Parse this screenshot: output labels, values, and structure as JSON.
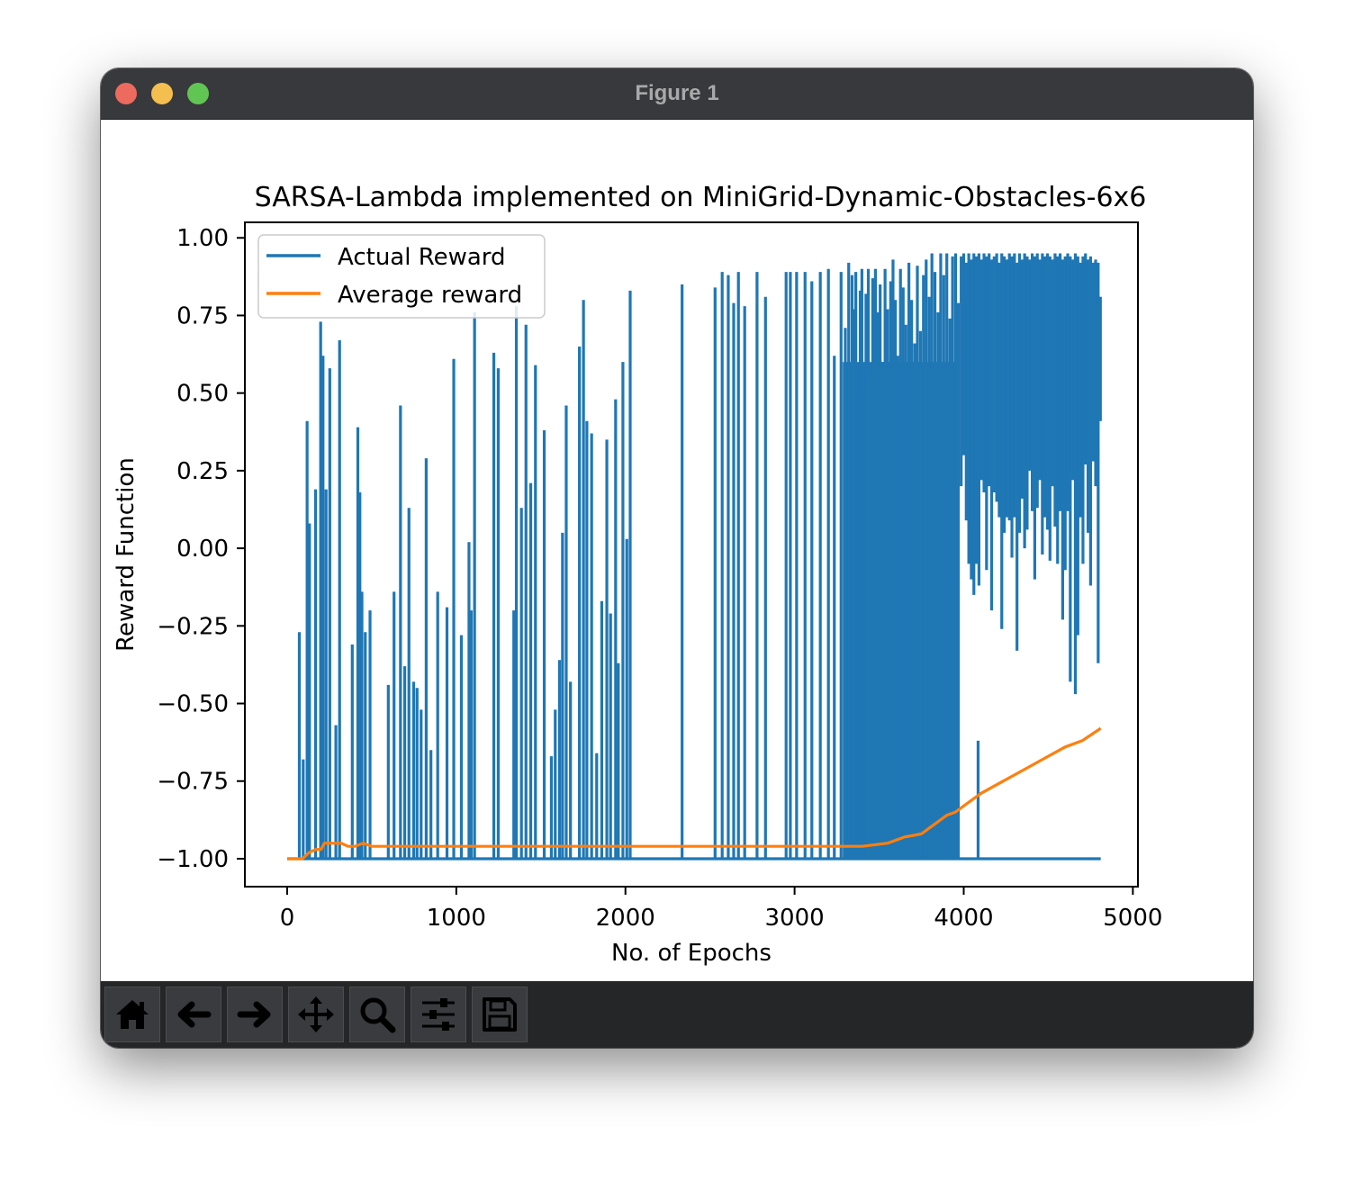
{
  "window": {
    "title": "Figure 1"
  },
  "toolbar": {
    "buttons": [
      {
        "name": "home",
        "icon": "home-icon"
      },
      {
        "name": "back",
        "icon": "arrow-left-icon"
      },
      {
        "name": "forward",
        "icon": "arrow-right-icon"
      },
      {
        "name": "pan",
        "icon": "move-icon"
      },
      {
        "name": "zoom",
        "icon": "magnifier-icon"
      },
      {
        "name": "configure-subplots",
        "icon": "sliders-icon"
      },
      {
        "name": "save",
        "icon": "floppy-disk-icon"
      }
    ]
  },
  "chart_data": {
    "type": "line",
    "title": "SARSA-Lambda implemented on MiniGrid-Dynamic-Obstacles-6x6",
    "xlabel": "No. of Epochs",
    "ylabel": "Reward Function",
    "xlim": [
      -250,
      5030
    ],
    "ylim": [
      -1.09,
      1.05
    ],
    "xticks": [
      0,
      1000,
      2000,
      3000,
      4000,
      5000
    ],
    "xtick_labels": [
      "0",
      "1000",
      "2000",
      "3000",
      "4000",
      "5000"
    ],
    "yticks": [
      1.0,
      0.75,
      0.5,
      0.25,
      0.0,
      -0.25,
      -0.5,
      -0.75,
      -1.0
    ],
    "ytick_labels": [
      "1.00",
      "0.75",
      "0.50",
      "0.25",
      "0.00",
      "−0.25",
      "−0.50",
      "−0.75",
      "−1.00"
    ],
    "legend_position": "top-left",
    "grid": false,
    "series": [
      {
        "name": "Actual Reward",
        "color": "#1f77b4",
        "baseline": -1.0,
        "spikes": [
          [
            72,
            -0.27
          ],
          [
            95,
            -0.68
          ],
          [
            118,
            0.41
          ],
          [
            132,
            0.08
          ],
          [
            168,
            0.19
          ],
          [
            198,
            0.73
          ],
          [
            212,
            0.62
          ],
          [
            230,
            0.19
          ],
          [
            252,
            0.58
          ],
          [
            288,
            -0.57
          ],
          [
            310,
            0.67
          ],
          [
            385,
            -0.31
          ],
          [
            418,
            0.39
          ],
          [
            430,
            0.18
          ],
          [
            442,
            -0.14
          ],
          [
            462,
            -0.27
          ],
          [
            490,
            -0.2
          ],
          [
            598,
            -0.44
          ],
          [
            632,
            -0.14
          ],
          [
            670,
            0.46
          ],
          [
            695,
            -0.38
          ],
          [
            720,
            0.13
          ],
          [
            748,
            -0.43
          ],
          [
            768,
            -0.45
          ],
          [
            792,
            -0.52
          ],
          [
            822,
            0.29
          ],
          [
            850,
            -0.65
          ],
          [
            890,
            -0.14
          ],
          [
            945,
            -0.19
          ],
          [
            985,
            0.61
          ],
          [
            1030,
            -0.28
          ],
          [
            1075,
            0.02
          ],
          [
            1088,
            -0.2
          ],
          [
            1108,
            0.76
          ],
          [
            1222,
            0.63
          ],
          [
            1248,
            0.58
          ],
          [
            1340,
            -0.2
          ],
          [
            1355,
            0.78
          ],
          [
            1385,
            0.13
          ],
          [
            1412,
            0.72
          ],
          [
            1440,
            0.21
          ],
          [
            1468,
            0.59
          ],
          [
            1520,
            0.38
          ],
          [
            1562,
            -0.67
          ],
          [
            1585,
            -0.52
          ],
          [
            1610,
            -0.36
          ],
          [
            1628,
            0.05
          ],
          [
            1650,
            0.46
          ],
          [
            1675,
            -0.43
          ],
          [
            1728,
            0.65
          ],
          [
            1752,
            0.8
          ],
          [
            1772,
            0.41
          ],
          [
            1800,
            0.37
          ],
          [
            1830,
            -0.66
          ],
          [
            1860,
            -0.17
          ],
          [
            1890,
            0.35
          ],
          [
            1912,
            -0.21
          ],
          [
            1942,
            0.48
          ],
          [
            1958,
            -0.37
          ],
          [
            1985,
            0.6
          ],
          [
            2008,
            0.03
          ],
          [
            2028,
            0.83
          ],
          [
            2335,
            0.85
          ],
          [
            2530,
            0.84
          ],
          [
            2572,
            0.89
          ],
          [
            2608,
            0.88
          ],
          [
            2640,
            0.79
          ],
          [
            2668,
            0.89
          ],
          [
            2705,
            0.78
          ],
          [
            2778,
            0.89
          ],
          [
            2828,
            0.81
          ],
          [
            2950,
            0.89
          ],
          [
            2975,
            0.89
          ],
          [
            3012,
            0.89
          ],
          [
            3062,
            0.89
          ],
          [
            3102,
            0.86
          ],
          [
            3152,
            0.89
          ],
          [
            3200,
            0.9
          ],
          [
            3235,
            0.62
          ],
          [
            3275,
            0.89
          ],
          [
            3300,
            0.71
          ],
          [
            3320,
            0.92
          ],
          [
            3340,
            0.88
          ],
          [
            3352,
            0.77
          ],
          [
            3362,
            0.89
          ],
          [
            3374,
            0.49
          ],
          [
            3388,
            0.83
          ],
          [
            3398,
            0.9
          ],
          [
            3410,
            0.59
          ],
          [
            3422,
            0.82
          ],
          [
            3436,
            0.9
          ],
          [
            3448,
            0.55
          ],
          [
            3462,
            0.87
          ],
          [
            3478,
            0.9
          ],
          [
            3492,
            0.76
          ],
          [
            3506,
            0.85
          ],
          [
            3520,
            0.6
          ],
          [
            3535,
            0.9
          ],
          [
            3550,
            0.77
          ],
          [
            3568,
            0.86
          ],
          [
            3582,
            0.93
          ],
          [
            3596,
            0.8
          ],
          [
            3610,
            0.62
          ],
          [
            3626,
            0.9
          ],
          [
            3642,
            0.84
          ],
          [
            3658,
            0.72
          ],
          [
            3676,
            0.92
          ],
          [
            3692,
            0.8
          ],
          [
            3710,
            0.66
          ],
          [
            3726,
            0.91
          ],
          [
            3744,
            0.7
          ],
          [
            3762,
            0.88
          ],
          [
            3778,
            0.93
          ],
          [
            3796,
            0.81
          ],
          [
            3812,
            0.95
          ],
          [
            3830,
            0.89
          ],
          [
            3848,
            0.76
          ],
          [
            3864,
            0.95
          ],
          [
            3882,
            0.88
          ],
          [
            3900,
            0.95
          ],
          [
            3918,
            0.74
          ],
          [
            3934,
            0.94
          ],
          [
            3952,
            0.95
          ],
          [
            3968,
            0.79
          ]
        ],
        "band": [
          [
            3985,
            0.94,
            0.2
          ],
          [
            4000,
            0.95,
            0.3
          ],
          [
            4015,
            0.92,
            0.09
          ],
          [
            4030,
            0.95,
            -0.05
          ],
          [
            4045,
            0.93,
            -0.1
          ],
          [
            4060,
            0.95,
            -0.15
          ],
          [
            4075,
            0.94,
            -0.05
          ],
          [
            4090,
            0.95,
            -0.12
          ],
          [
            4105,
            0.93,
            0.22
          ],
          [
            4120,
            0.95,
            0.18
          ],
          [
            4135,
            0.94,
            -0.07
          ],
          [
            4150,
            0.95,
            0.2
          ],
          [
            4165,
            0.93,
            -0.2
          ],
          [
            4180,
            0.94,
            0.18
          ],
          [
            4195,
            0.95,
            0.15
          ],
          [
            4210,
            0.92,
            0.1
          ],
          [
            4225,
            0.95,
            -0.26
          ],
          [
            4240,
            0.94,
            0.05
          ],
          [
            4255,
            0.93,
            0.1
          ],
          [
            4270,
            0.95,
            0.09
          ],
          [
            4285,
            0.94,
            -0.03
          ],
          [
            4300,
            0.95,
            0.1
          ],
          [
            4315,
            0.92,
            -0.33
          ],
          [
            4330,
            0.95,
            0.05
          ],
          [
            4345,
            0.93,
            0.16
          ],
          [
            4360,
            0.95,
            0.0
          ],
          [
            4375,
            0.94,
            0.06
          ],
          [
            4390,
            0.93,
            0.25
          ],
          [
            4405,
            0.95,
            0.12
          ],
          [
            4420,
            0.94,
            -0.1
          ],
          [
            4435,
            0.95,
            0.13
          ],
          [
            4450,
            0.93,
            0.22
          ],
          [
            4465,
            0.95,
            -0.02
          ],
          [
            4480,
            0.94,
            0.1
          ],
          [
            4495,
            0.95,
            0.06
          ],
          [
            4510,
            0.94,
            -0.04
          ],
          [
            4525,
            0.93,
            0.2
          ],
          [
            4540,
            0.95,
            0.07
          ],
          [
            4555,
            0.94,
            -0.05
          ],
          [
            4570,
            0.95,
            0.12
          ],
          [
            4585,
            0.93,
            -0.23
          ],
          [
            4600,
            0.94,
            -0.07
          ],
          [
            4615,
            0.95,
            0.12
          ],
          [
            4630,
            0.94,
            -0.43
          ],
          [
            4645,
            0.93,
            0.22
          ],
          [
            4660,
            0.95,
            -0.47
          ],
          [
            4675,
            0.94,
            -0.28
          ],
          [
            4690,
            0.92,
            0.1
          ],
          [
            4705,
            0.94,
            -0.05
          ],
          [
            4720,
            0.95,
            0.27
          ],
          [
            4735,
            0.93,
            0.05
          ],
          [
            4750,
            0.94,
            -0.12
          ],
          [
            4765,
            0.92,
            0.28
          ],
          [
            4780,
            0.93,
            0.2
          ],
          [
            4795,
            0.92,
            -0.37
          ],
          [
            4808,
            0.81,
            0.41
          ]
        ],
        "isolated_drops": [
          [
            4085,
            -0.62
          ]
        ],
        "solid_band_range": [
          3285,
          3965
        ]
      },
      {
        "name": "Average reward",
        "color": "#ff7f0e",
        "x": [
          0,
          50,
          90,
          110,
          130,
          170,
          200,
          220,
          240,
          280,
          320,
          360,
          400,
          450,
          500,
          600,
          700,
          800,
          1000,
          1200,
          1400,
          1600,
          1800,
          2000,
          2200,
          2400,
          2600,
          2800,
          3000,
          3200,
          3400,
          3550,
          3650,
          3750,
          3800,
          3850,
          3900,
          3950,
          4000,
          4100,
          4200,
          4300,
          4400,
          4500,
          4600,
          4700,
          4810
        ],
        "y": [
          -1.0,
          -1.0,
          -1.0,
          -0.99,
          -0.98,
          -0.97,
          -0.97,
          -0.95,
          -0.95,
          -0.95,
          -0.95,
          -0.96,
          -0.96,
          -0.95,
          -0.96,
          -0.96,
          -0.96,
          -0.96,
          -0.96,
          -0.96,
          -0.96,
          -0.96,
          -0.96,
          -0.96,
          -0.96,
          -0.96,
          -0.96,
          -0.96,
          -0.96,
          -0.96,
          -0.96,
          -0.95,
          -0.93,
          -0.92,
          -0.9,
          -0.88,
          -0.86,
          -0.85,
          -0.83,
          -0.79,
          -0.76,
          -0.73,
          -0.7,
          -0.67,
          -0.64,
          -0.62,
          -0.58
        ]
      }
    ]
  }
}
